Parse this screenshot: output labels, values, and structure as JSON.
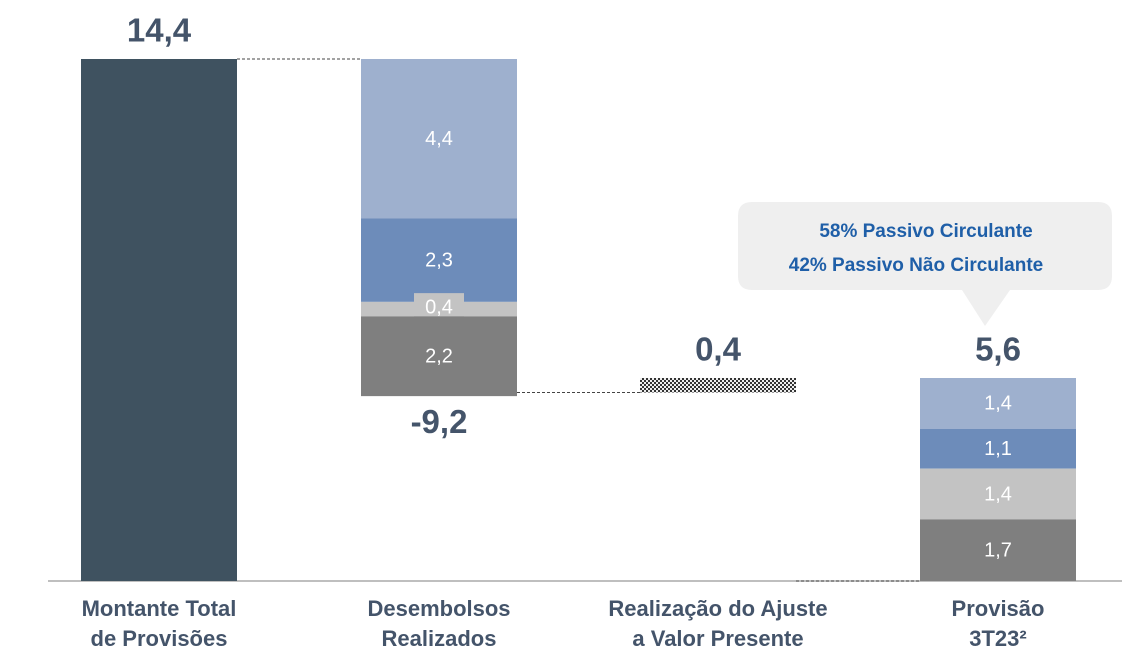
{
  "chart_data": {
    "type": "waterfall",
    "categories": [
      [
        "Montante Total",
        "de Provisões"
      ],
      [
        "Desembolsos",
        "Realizados"
      ],
      [
        "Realização do Ajuste",
        "a Valor Presente"
      ],
      [
        "Provisão",
        "3T23²"
      ]
    ],
    "kinds": [
      "total",
      "delta",
      "delta",
      "total"
    ],
    "values": [
      14.4,
      -9.2,
      0.4,
      5.6
    ],
    "value_labels": [
      "14,4",
      "-9,2",
      "0,4",
      "5,6"
    ],
    "segments": [
      [],
      [
        4.4,
        2.3,
        0.4,
        2.2
      ],
      [],
      [
        1.4,
        1.1,
        1.4,
        1.7
      ]
    ],
    "segment_labels": [
      [],
      [
        "4,4",
        "2,3",
        "0,4",
        "2,2"
      ],
      [],
      [
        "1,4",
        "1,1",
        "1,4",
        "1,7"
      ]
    ],
    "segment_colors": [
      "#9eb0ce",
      "#6d8cba",
      "#c3c3c3",
      "#7f7f7f"
    ],
    "total_color": "#3f5260",
    "annotation": [
      "58% Passivo Circulante",
      "42% Passivo Não Circulante"
    ]
  }
}
